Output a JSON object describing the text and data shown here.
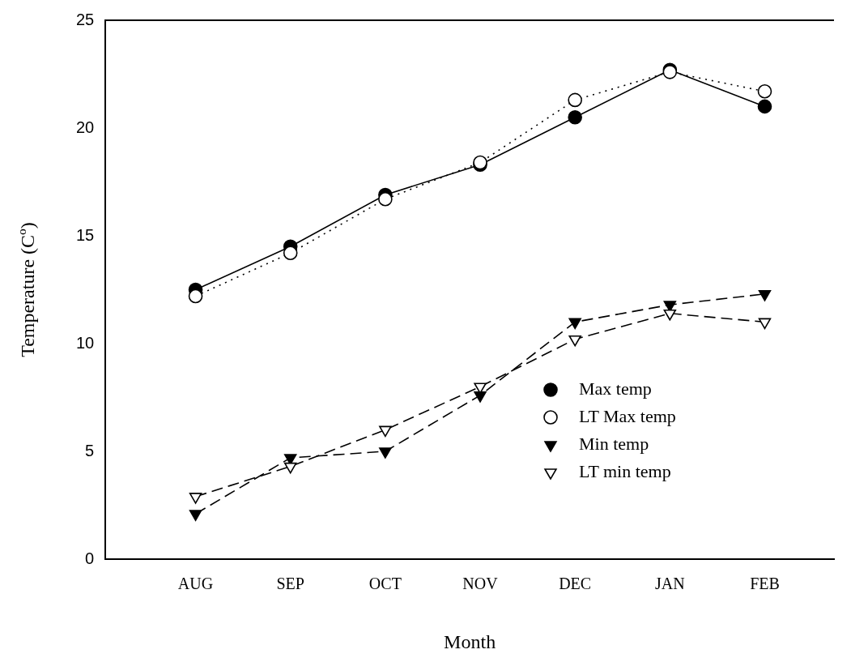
{
  "chart_data": {
    "type": "line",
    "xlabel": "Month",
    "ylabel": "Temperature (C$^{o}$)",
    "categories": [
      "AUG",
      "SEP",
      "OCT",
      "NOV",
      "DEC",
      "JAN",
      "FEB"
    ],
    "ylim": [
      0,
      25
    ],
    "yticks": [
      0,
      5,
      10,
      15,
      20,
      25
    ],
    "grid": false,
    "legend": "bottom right",
    "series": [
      {
        "name": "Max temp",
        "color": "#000000",
        "marker": "circle",
        "line_style": "solid",
        "values": [
          12.5,
          14.5,
          16.9,
          18.3,
          20.5,
          22.7,
          21.0
        ]
      },
      {
        "name": "LT Max temp",
        "color": "#000000",
        "marker": "circle",
        "line_style": "dotted",
        "values": [
          12.2,
          14.2,
          16.7,
          18.4,
          21.3,
          22.6,
          21.7
        ]
      },
      {
        "name": "Min temp",
        "color": "#000000",
        "marker": "triangle",
        "line_style": "dashed",
        "values": [
          2.1,
          4.7,
          5.0,
          7.6,
          11.0,
          11.8,
          12.3
        ]
      },
      {
        "name": "LT min temp",
        "color": "#000000",
        "marker": "triangle",
        "line_style": "dashed",
        "values": [
          2.9,
          4.3,
          6.0,
          8.0,
          10.2,
          11.4,
          11.0
        ]
      }
    ]
  }
}
